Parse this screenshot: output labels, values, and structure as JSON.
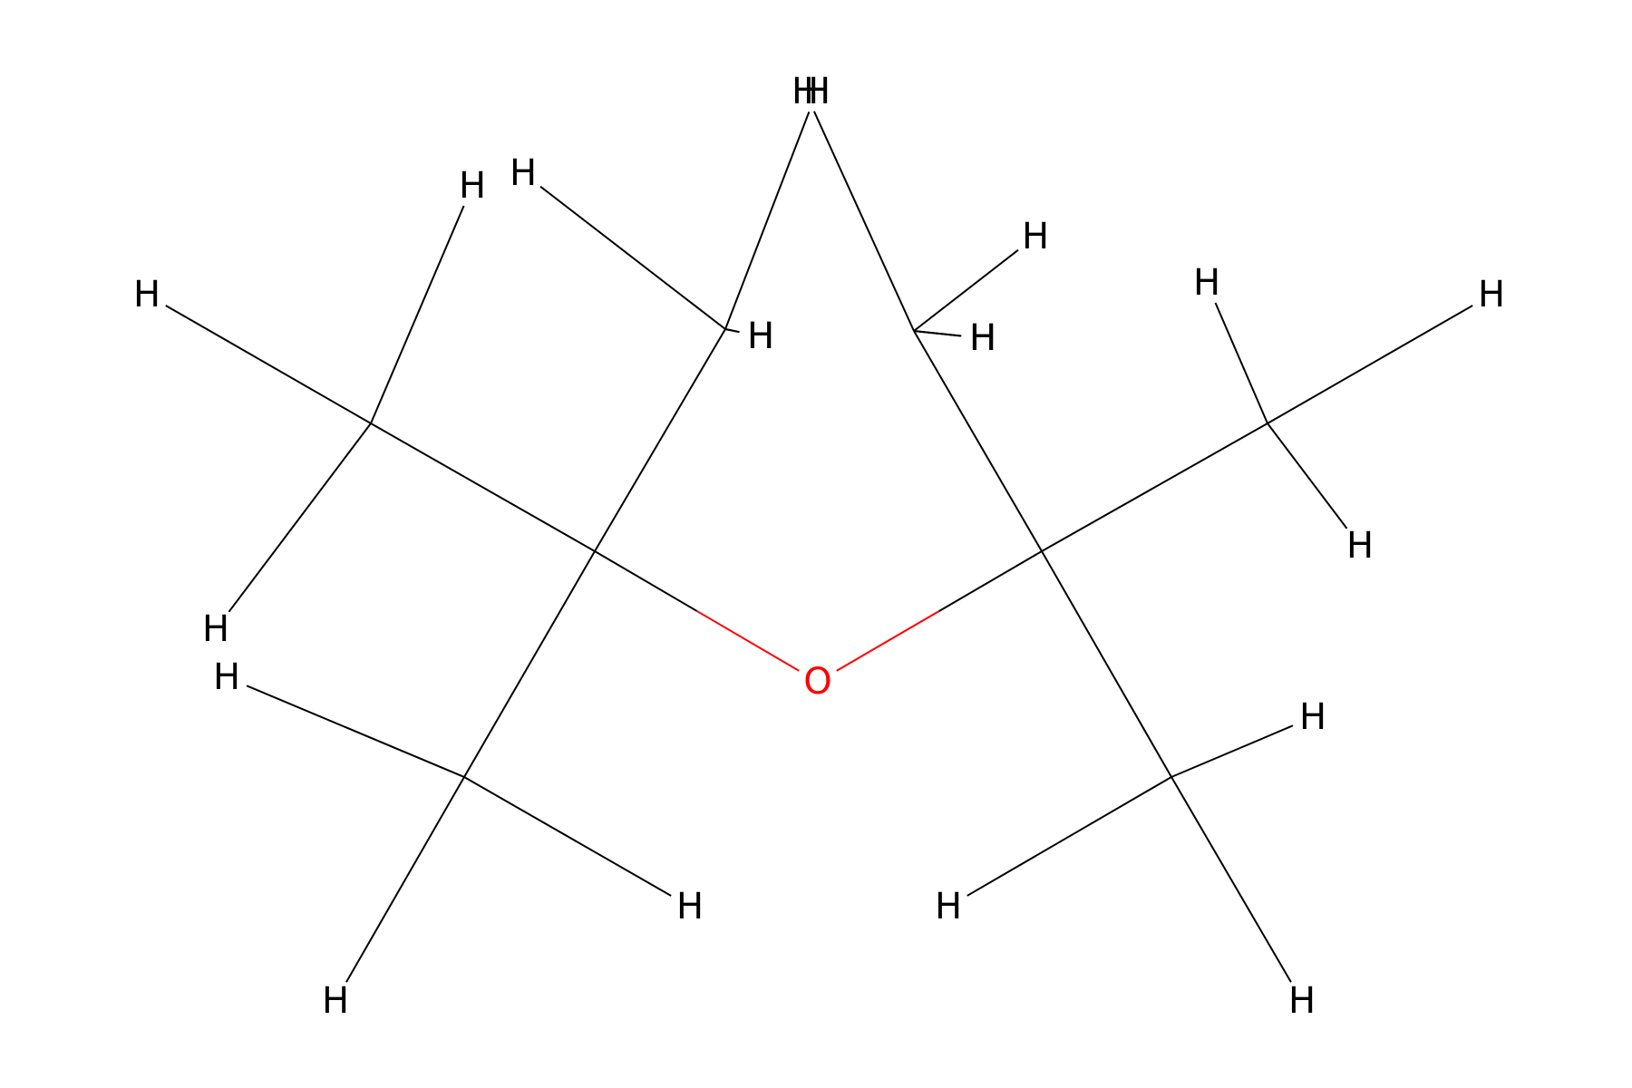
{
  "molecule": {
    "bond_color": "#000000",
    "heteroatom_color": "#ff0000",
    "atoms": [
      {
        "id": "C1",
        "label": "",
        "element": "C"
      },
      {
        "id": "C2",
        "label": "",
        "element": "C"
      },
      {
        "id": "O",
        "label": "O",
        "element": "O"
      },
      {
        "id": "C3",
        "label": "",
        "element": "C"
      },
      {
        "id": "C4",
        "label": "",
        "element": "C"
      },
      {
        "id": "C5",
        "label": "",
        "element": "C"
      },
      {
        "id": "C6",
        "label": "",
        "element": "C"
      },
      {
        "id": "C7",
        "label": "",
        "element": "C"
      },
      {
        "id": "C8",
        "label": "",
        "element": "C"
      },
      {
        "id": "H1",
        "label": "H",
        "element": "H"
      },
      {
        "id": "H2",
        "label": "H",
        "element": "H"
      },
      {
        "id": "H3",
        "label": "H",
        "element": "H"
      },
      {
        "id": "H4",
        "label": "H",
        "element": "H"
      },
      {
        "id": "H5",
        "label": "H",
        "element": "H"
      },
      {
        "id": "H6",
        "label": "H",
        "element": "H"
      },
      {
        "id": "H7",
        "label": "H",
        "element": "H"
      },
      {
        "id": "H8",
        "label": "H",
        "element": "H"
      },
      {
        "id": "H9",
        "label": "H",
        "element": "H"
      },
      {
        "id": "H10",
        "label": "H",
        "element": "H"
      },
      {
        "id": "H11",
        "label": "H",
        "element": "H"
      },
      {
        "id": "H12",
        "label": "H",
        "element": "H"
      },
      {
        "id": "H13",
        "label": "H",
        "element": "H"
      },
      {
        "id": "H14",
        "label": "H",
        "element": "H"
      },
      {
        "id": "H15",
        "label": "H",
        "element": "H"
      },
      {
        "id": "H16",
        "label": "H",
        "element": "H"
      },
      {
        "id": "H17",
        "label": "H",
        "element": "H"
      },
      {
        "id": "H18",
        "label": "H",
        "element": "H"
      },
      {
        "id": "H19",
        "label": "H",
        "element": "H"
      },
      {
        "id": "H20",
        "label": "H",
        "element": "H"
      }
    ],
    "bonds": [
      {
        "from": "C1",
        "to": "C2"
      },
      {
        "from": "C1",
        "to": "O"
      },
      {
        "from": "O",
        "to": "C3"
      },
      {
        "from": "C3",
        "to": "C4"
      },
      {
        "from": "C1",
        "to": "C5"
      },
      {
        "from": "C1",
        "to": "C6"
      },
      {
        "from": "C3",
        "to": "C7"
      },
      {
        "from": "C3",
        "to": "C8"
      },
      {
        "from": "C2",
        "to": "H1"
      },
      {
        "from": "C2",
        "to": "H2"
      },
      {
        "from": "C2",
        "to": "H3"
      },
      {
        "from": "C4",
        "to": "H4"
      },
      {
        "from": "C4",
        "to": "H5"
      },
      {
        "from": "C4",
        "to": "H6"
      },
      {
        "from": "C5",
        "to": "H7"
      },
      {
        "from": "C5",
        "to": "H8"
      },
      {
        "from": "C5",
        "to": "H9"
      },
      {
        "from": "C6",
        "to": "H10"
      },
      {
        "from": "C6",
        "to": "H11"
      },
      {
        "from": "C6",
        "to": "H12"
      },
      {
        "from": "C7",
        "to": "H13"
      },
      {
        "from": "C7",
        "to": "H14"
      },
      {
        "from": "C7",
        "to": "H15"
      },
      {
        "from": "C8",
        "to": "H16"
      },
      {
        "from": "C8",
        "to": "H17"
      },
      {
        "from": "C8",
        "to": "H18"
      },
      {
        "from": "C2",
        "to": "H19"
      },
      {
        "from": "C4",
        "to": "H20"
      }
    ]
  }
}
